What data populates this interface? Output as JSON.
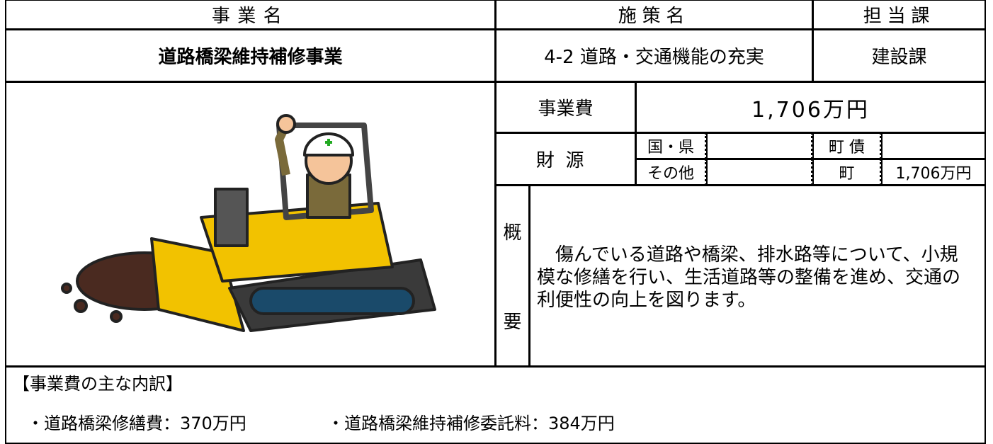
{
  "header": {
    "project_label": "事業名",
    "policy_label": "施策名",
    "section_label": "担当課",
    "project": "道路橋梁維持補修事業",
    "policy": "4-2 道路・交通機能の充実",
    "section": "建設課"
  },
  "budget": {
    "cost_label": "事業費",
    "cost": "1,706万円",
    "funding_label": "財源",
    "funding": [
      [
        "国・県",
        "町 債"
      ],
      [
        "その他",
        "町",
        "1,706万円"
      ]
    ]
  },
  "summary": {
    "label": [
      "概",
      "要"
    ],
    "text": "　傷んでいる道路や橋梁、排水路等について、小規模な修繕を行い、生活道路等の整備を進め、交通の利便性の向上を図ります。"
  },
  "breakdown": {
    "title": "【事業費の主な内訳】",
    "items": [
      "・道路橋梁修繕費：370万円",
      "・道路橋梁維持補修委託料：384万円"
    ]
  }
}
